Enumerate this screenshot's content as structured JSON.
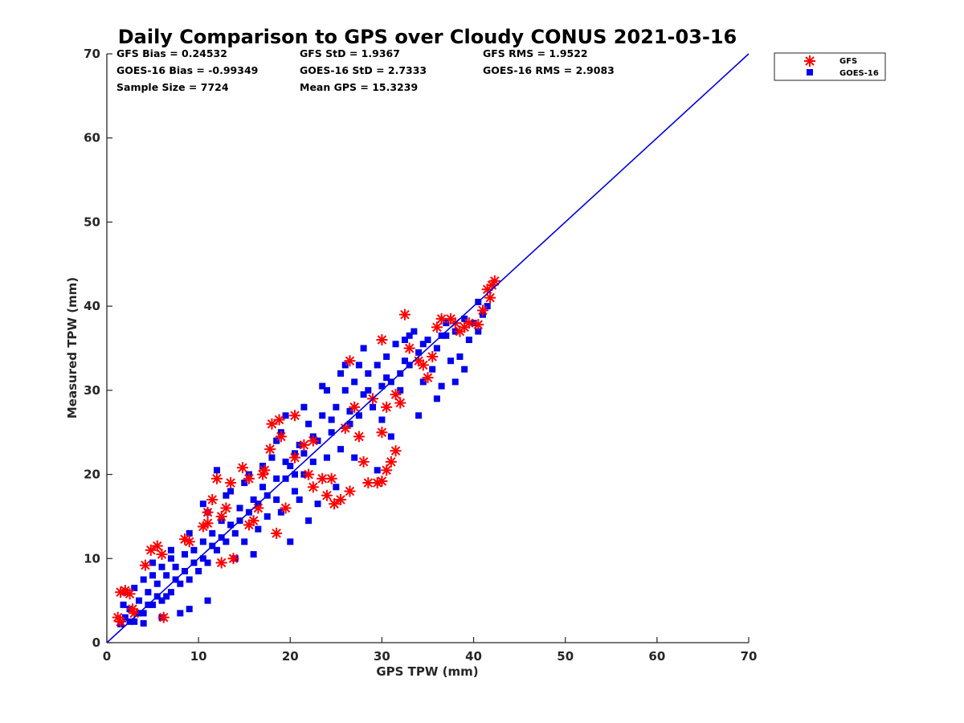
{
  "chart_data": {
    "type": "scatter",
    "title": "Daily Comparison to GPS over Cloudy CONUS 2021-03-16",
    "xlabel": "GPS TPW (mm)",
    "ylabel": "Measured TPW (mm)",
    "xlim": [
      0,
      70
    ],
    "ylim": [
      0,
      70
    ],
    "xticks": [
      "0",
      "10",
      "20",
      "30",
      "40",
      "50",
      "60",
      "70"
    ],
    "yticks": [
      "0",
      "10",
      "20",
      "30",
      "40",
      "50",
      "60",
      "70"
    ],
    "grid": false,
    "legend_position": "outside-top-right",
    "stats": [
      [
        "GFS Bias = 0.24532",
        "GFS StD = 1.9367",
        "GFS RMS = 1.9522"
      ],
      [
        "GOES-16 Bias = -0.99349",
        "GOES-16 StD = 2.7333",
        "GOES-16 RMS = 2.9083"
      ],
      [
        "Sample Size = 7724",
        "Mean GPS = 15.3239",
        ""
      ]
    ],
    "reference_line": {
      "from": [
        0,
        0
      ],
      "to": [
        70,
        70
      ],
      "color": "#0000dd"
    },
    "series": [
      {
        "name": "GFS",
        "marker": "asterisk",
        "color": "#ff0000",
        "points": [
          [
            1.5,
            6.0
          ],
          [
            2.0,
            6.2
          ],
          [
            2.5,
            5.8
          ],
          [
            1.2,
            3.0
          ],
          [
            1.5,
            2.5
          ],
          [
            4.2,
            9.2
          ],
          [
            4.8,
            11.0
          ],
          [
            5.5,
            11.5
          ],
          [
            6.0,
            10.5
          ],
          [
            6.2,
            3.0
          ],
          [
            8.5,
            12.3
          ],
          [
            9.0,
            12.0
          ],
          [
            10.5,
            13.8
          ],
          [
            11.0,
            14.2
          ],
          [
            11.5,
            17.0
          ],
          [
            11.0,
            15.5
          ],
          [
            12.0,
            19.5
          ],
          [
            12.5,
            15.0
          ],
          [
            13.5,
            19.0
          ],
          [
            13.0,
            16.0
          ],
          [
            14.8,
            20.8
          ],
          [
            15.5,
            19.5
          ],
          [
            16.5,
            16.0
          ],
          [
            12.5,
            9.5
          ],
          [
            13.8,
            10.0
          ],
          [
            17.0,
            20.0
          ],
          [
            17.2,
            20.5
          ],
          [
            18.0,
            26.0
          ],
          [
            18.8,
            26.5
          ],
          [
            19.0,
            24.5
          ],
          [
            18.5,
            13.0
          ],
          [
            19.5,
            16.0
          ],
          [
            20.5,
            22.0
          ],
          [
            21.5,
            23.5
          ],
          [
            22.0,
            20.0
          ],
          [
            22.5,
            18.5
          ],
          [
            23.5,
            19.5
          ],
          [
            24.0,
            17.5
          ],
          [
            24.8,
            16.5
          ],
          [
            25.5,
            17.0
          ],
          [
            26.5,
            18.0
          ],
          [
            26.0,
            25.5
          ],
          [
            26.5,
            33.5
          ],
          [
            27.0,
            28.0
          ],
          [
            27.5,
            24.5
          ],
          [
            28.0,
            21.5
          ],
          [
            28.5,
            19.0
          ],
          [
            29.5,
            19.0
          ],
          [
            30.0,
            19.2
          ],
          [
            30.0,
            25.0
          ],
          [
            30.5,
            20.5
          ],
          [
            31.0,
            21.5
          ],
          [
            31.5,
            22.8
          ],
          [
            30.5,
            28.0
          ],
          [
            31.5,
            29.5
          ],
          [
            32.0,
            28.5
          ],
          [
            30.0,
            36.0
          ],
          [
            32.5,
            39.0
          ],
          [
            33.0,
            35.0
          ],
          [
            34.0,
            33.5
          ],
          [
            34.5,
            33.0
          ],
          [
            35.0,
            31.5
          ],
          [
            35.5,
            34.0
          ],
          [
            36.0,
            37.5
          ],
          [
            36.5,
            38.5
          ],
          [
            37.5,
            38.5
          ],
          [
            38.0,
            38.0
          ],
          [
            38.5,
            37.0
          ],
          [
            39.0,
            37.5
          ],
          [
            39.5,
            38.0
          ],
          [
            40.5,
            37.8
          ],
          [
            41.0,
            39.5
          ],
          [
            41.5,
            42.0
          ],
          [
            42.0,
            42.5
          ],
          [
            42.3,
            43.0
          ],
          [
            41.8,
            41.0
          ],
          [
            3.0,
            3.5
          ],
          [
            2.8,
            4.0
          ],
          [
            24.5,
            19.5
          ],
          [
            22.5,
            24.0
          ],
          [
            29.0,
            29.0
          ],
          [
            15.5,
            14.0
          ],
          [
            16.0,
            14.5
          ],
          [
            17.8,
            23.0
          ],
          [
            20.5,
            27.0
          ]
        ]
      },
      {
        "name": "GOES-16",
        "marker": "square",
        "color": "#0000ee",
        "points": [
          [
            1.5,
            2.2
          ],
          [
            2.0,
            3.0
          ],
          [
            2.5,
            4.0
          ],
          [
            3.0,
            2.5
          ],
          [
            3.5,
            5.0
          ],
          [
            4.0,
            3.5
          ],
          [
            4.5,
            6.0
          ],
          [
            5.0,
            4.5
          ],
          [
            5.5,
            7.0
          ],
          [
            6.0,
            5.0
          ],
          [
            6.5,
            8.0
          ],
          [
            7.0,
            6.0
          ],
          [
            7.5,
            9.0
          ],
          [
            8.0,
            7.0
          ],
          [
            8.5,
            10.5
          ],
          [
            9.0,
            7.5
          ],
          [
            9.5,
            11.0
          ],
          [
            10.0,
            8.5
          ],
          [
            10.5,
            12.0
          ],
          [
            11.0,
            9.5
          ],
          [
            11.5,
            13.0
          ],
          [
            12.0,
            11.0
          ],
          [
            12.5,
            14.5
          ],
          [
            13.0,
            12.0
          ],
          [
            13.5,
            18.0
          ],
          [
            14.0,
            13.0
          ],
          [
            14.5,
            16.0
          ],
          [
            15.0,
            12.0
          ],
          [
            16.0,
            17.0
          ],
          [
            16.5,
            13.5
          ],
          [
            17.0,
            18.5
          ],
          [
            17.5,
            15.0
          ],
          [
            18.0,
            22.0
          ],
          [
            18.5,
            17.0
          ],
          [
            19.0,
            25.0
          ],
          [
            19.5,
            19.5
          ],
          [
            20.0,
            21.0
          ],
          [
            20.5,
            18.0
          ],
          [
            21.0,
            23.5
          ],
          [
            21.5,
            20.0
          ],
          [
            22.0,
            26.0
          ],
          [
            22.5,
            21.5
          ],
          [
            23.0,
            24.0
          ],
          [
            23.5,
            27.0
          ],
          [
            24.0,
            22.0
          ],
          [
            24.5,
            26.5
          ],
          [
            25.0,
            28.0
          ],
          [
            25.5,
            23.0
          ],
          [
            26.0,
            30.0
          ],
          [
            26.5,
            26.0
          ],
          [
            27.0,
            31.0
          ],
          [
            27.5,
            27.0
          ],
          [
            28.0,
            29.5
          ],
          [
            28.5,
            32.0
          ],
          [
            29.0,
            28.0
          ],
          [
            29.5,
            33.0
          ],
          [
            30.0,
            30.5
          ],
          [
            30.5,
            34.0
          ],
          [
            31.0,
            31.0
          ],
          [
            31.5,
            35.5
          ],
          [
            32.0,
            32.0
          ],
          [
            32.5,
            36.0
          ],
          [
            33.0,
            33.0
          ],
          [
            33.5,
            37.0
          ],
          [
            34.0,
            34.5
          ],
          [
            34.5,
            31.0
          ],
          [
            35.0,
            36.0
          ],
          [
            35.5,
            32.5
          ],
          [
            36.0,
            35.0
          ],
          [
            36.5,
            30.5
          ],
          [
            37.0,
            36.5
          ],
          [
            37.5,
            33.5
          ],
          [
            38.0,
            37.0
          ],
          [
            38.5,
            34.0
          ],
          [
            39.0,
            32.5
          ],
          [
            39.5,
            36.0
          ],
          [
            40.0,
            38.0
          ],
          [
            40.5,
            37.0
          ],
          [
            41.0,
            39.0
          ],
          [
            41.5,
            40.0
          ],
          [
            3.0,
            6.5
          ],
          [
            5.0,
            9.5
          ],
          [
            7.0,
            11.0
          ],
          [
            9.0,
            13.0
          ],
          [
            11.0,
            15.5
          ],
          [
            13.0,
            17.5
          ],
          [
            15.0,
            19.0
          ],
          [
            17.0,
            21.0
          ],
          [
            19.0,
            15.5
          ],
          [
            21.0,
            17.0
          ],
          [
            23.0,
            16.5
          ],
          [
            25.0,
            18.5
          ],
          [
            27.0,
            22.0
          ],
          [
            22.0,
            14.5
          ],
          [
            20.0,
            12.0
          ],
          [
            14.0,
            10.0
          ],
          [
            16.0,
            10.5
          ],
          [
            9.0,
            4.0
          ],
          [
            11.0,
            5.0
          ],
          [
            4.0,
            2.3
          ],
          [
            6.0,
            3.0
          ],
          [
            8.0,
            3.5
          ],
          [
            2.0,
            6.0
          ],
          [
            1.8,
            4.5
          ],
          [
            12.0,
            20.5
          ],
          [
            10.5,
            16.5
          ],
          [
            24.0,
            30.0
          ],
          [
            26.0,
            33.0
          ],
          [
            28.0,
            35.0
          ],
          [
            30.0,
            26.5
          ],
          [
            32.0,
            30.0
          ],
          [
            34.0,
            27.0
          ],
          [
            36.0,
            29.0
          ],
          [
            38.0,
            31.0
          ],
          [
            39.0,
            38.5
          ],
          [
            40.5,
            40.5
          ],
          [
            29.5,
            20.5
          ],
          [
            31.0,
            24.5
          ],
          [
            33.0,
            36.5
          ],
          [
            37.0,
            38.0
          ],
          [
            15.5,
            20.0
          ],
          [
            18.5,
            24.0
          ],
          [
            19.5,
            27.0
          ],
          [
            21.5,
            28.0
          ],
          [
            23.5,
            30.5
          ],
          [
            25.5,
            32.0
          ],
          [
            27.5,
            33.0
          ],
          [
            20.5,
            22.5
          ],
          [
            22.5,
            24.5
          ],
          [
            24.5,
            25.0
          ],
          [
            26.5,
            27.5
          ],
          [
            28.5,
            30.0
          ],
          [
            30.5,
            31.5
          ],
          [
            32.5,
            33.5
          ],
          [
            34.5,
            35.5
          ],
          [
            36.5,
            36.5
          ],
          [
            6.5,
            5.5
          ],
          [
            7.5,
            7.5
          ],
          [
            8.5,
            8.5
          ],
          [
            9.5,
            9.5
          ],
          [
            10.5,
            10.0
          ],
          [
            11.5,
            11.5
          ],
          [
            12.5,
            12.5
          ],
          [
            13.5,
            14.0
          ],
          [
            14.5,
            14.5
          ],
          [
            15.5,
            15.5
          ],
          [
            16.5,
            16.5
          ],
          [
            17.5,
            17.5
          ],
          [
            18.5,
            19.5
          ],
          [
            19.5,
            21.5
          ],
          [
            20.5,
            20.0
          ],
          [
            21.5,
            22.5
          ],
          [
            2.5,
            2.5
          ],
          [
            3.5,
            3.5
          ],
          [
            4.5,
            4.5
          ],
          [
            5.5,
            5.5
          ],
          [
            4.0,
            7.5
          ],
          [
            5.0,
            8.0
          ],
          [
            6.0,
            9.0
          ],
          [
            7.0,
            10.0
          ]
        ]
      }
    ]
  }
}
